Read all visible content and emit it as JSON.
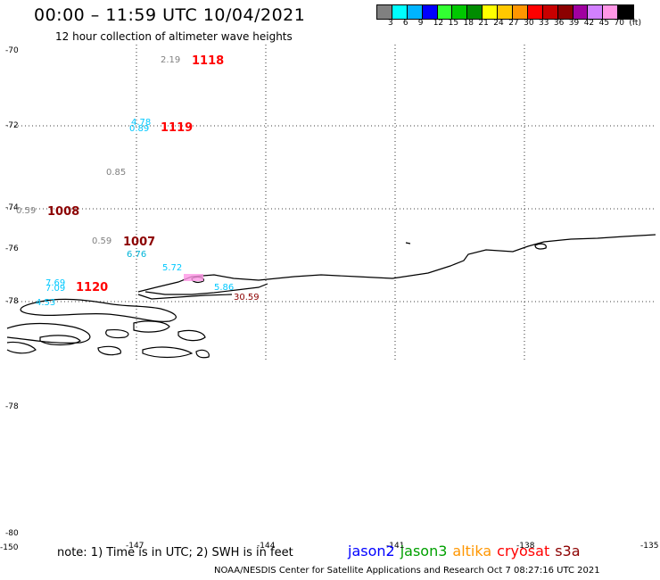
{
  "title": "00:00 – 11:59 UTC 10/04/2021",
  "subtitle": "12 hour collection of altimeter wave heights",
  "colorbar": {
    "colors": [
      "#808080",
      "#00ffff",
      "#00b4ff",
      "#0000ff",
      "#32ff32",
      "#00c800",
      "#008c00",
      "#ffff00",
      "#ffc800",
      "#ff9600",
      "#ff0000",
      "#c80000",
      "#8c0000",
      "#a000a0",
      "#d280ff",
      "#ff96e6",
      "#000000"
    ],
    "labels": [
      "3",
      "6",
      "9",
      "12",
      "15",
      "18",
      "21",
      "24",
      "27",
      "30",
      "33",
      "36",
      "39",
      "42",
      "45",
      "70",
      "(ft)"
    ]
  },
  "lat_labels": [
    "-70",
    "-72",
    "-74",
    "-76",
    "-78",
    "-78",
    "-80"
  ],
  "lon_labels": [
    "-150",
    "-147",
    "-144",
    "-141",
    "-138",
    "-135"
  ],
  "points": [
    {
      "text": "2.19",
      "color": "#808080"
    },
    {
      "text": "4.78",
      "color": "#00c8ff"
    },
    {
      "text": "0.89",
      "color": "#00c8ff"
    },
    {
      "text": "0.85",
      "color": "#808080"
    },
    {
      "text": "0.59",
      "color": "#808080"
    },
    {
      "text": "0.59",
      "color": "#808080"
    },
    {
      "text": "6.76",
      "color": "#00b4d8"
    },
    {
      "text": "5.72",
      "color": "#00c8ff"
    },
    {
      "text": "7.69",
      "color": "#00c8ff"
    },
    {
      "text": "7.09",
      "color": "#00c8ff"
    },
    {
      "text": "4.53",
      "color": "#00c8ff"
    },
    {
      "text": "5.86",
      "color": "#00c8ff"
    },
    {
      "text": "30.59",
      "color": "#8c0000"
    }
  ],
  "passes": [
    {
      "text": "1118",
      "color": "#ff0000"
    },
    {
      "text": "1119",
      "color": "#ff0000"
    },
    {
      "text": "1008",
      "color": "#8c0000"
    },
    {
      "text": "1007",
      "color": "#8c0000"
    },
    {
      "text": "1120",
      "color": "#ff0000"
    }
  ],
  "note": "note: 1) Time is in UTC; 2) SWH is in feet",
  "satellites": [
    {
      "name": "jason2",
      "color": "#0000ff"
    },
    {
      "name": "jason3",
      "color": "#00a000"
    },
    {
      "name": "altika",
      "color": "#ff9600"
    },
    {
      "name": "cryosat",
      "color": "#ff0000"
    },
    {
      "name": "s3a",
      "color": "#8c0000"
    }
  ],
  "footer": "NOAA/NESDIS Center for Satellite Applications and Research    Oct  7 08:27:16 UTC 2021"
}
